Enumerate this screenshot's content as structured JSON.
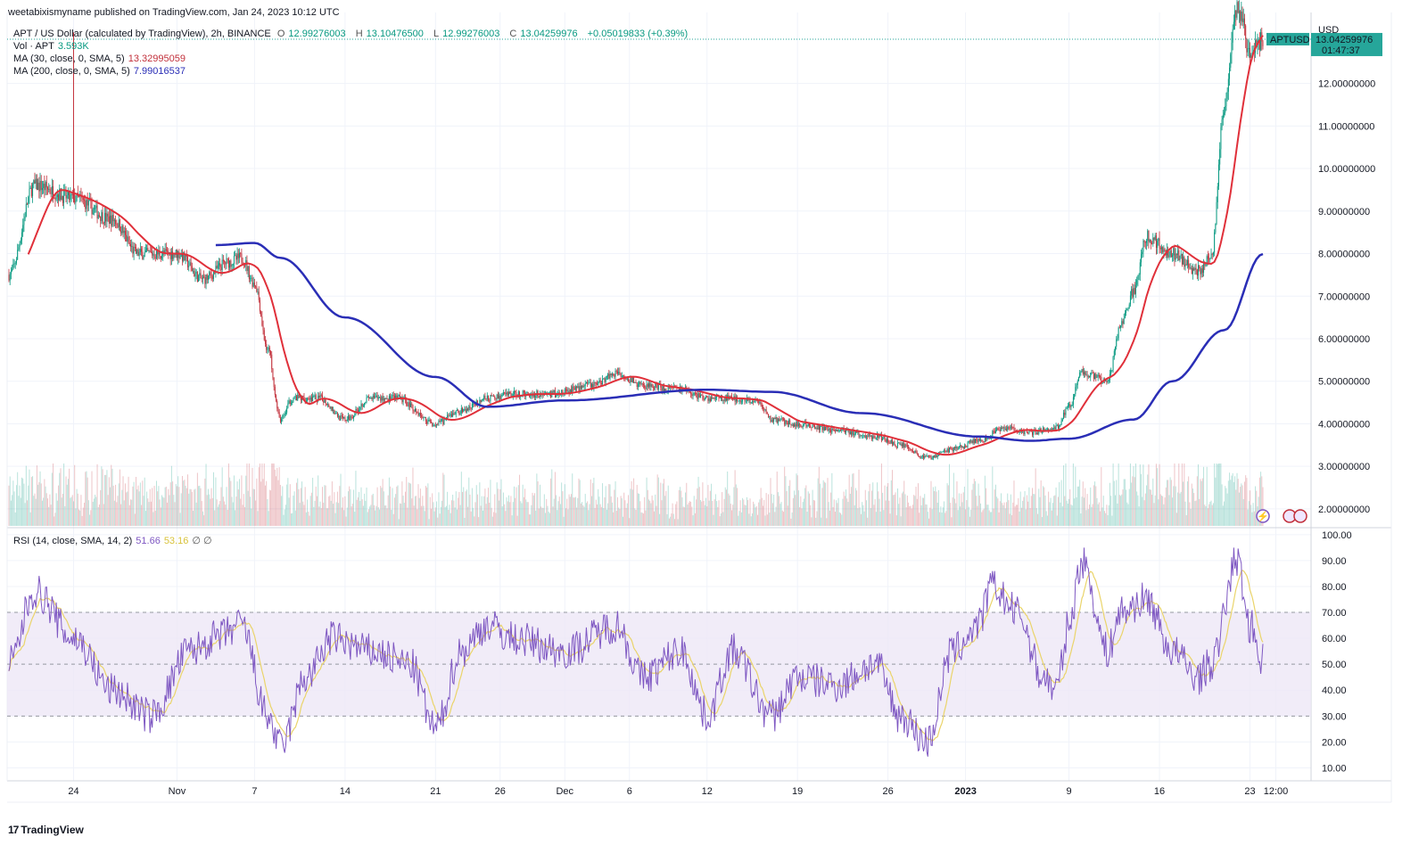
{
  "published": "weetabixismyname published on TradingView.com, Jan 24, 2023 10:12 UTC",
  "legend": {
    "symbol": "APT / US Dollar (calculated by TradingView), 2h, BINANCE",
    "o_label": "O",
    "o": "12.99276003",
    "h_label": "H",
    "h": "13.10476500",
    "l_label": "L",
    "l": "12.99276003",
    "c_label": "C",
    "c": "13.04259976",
    "change": "+0.05019833 (+0.39%)",
    "vol_label": "Vol · APT",
    "vol": "3.593K",
    "ma30_label": "MA (30, close, 0, SMA, 5)",
    "ma30": "13.32995059",
    "ma200_label": "MA (200, close, 0, SMA, 5)",
    "ma200": "7.99016537",
    "rsi_label": "RSI (14, close, SMA, 14, 2)",
    "rsi": "51.66",
    "rsi_ma": "53.16",
    "rsi_extra": "∅ ∅"
  },
  "price_tag": {
    "symbol": "APTUSD",
    "price": "13.04259976",
    "countdown": "01:47:37"
  },
  "currency": "USD",
  "footer_logo": "TradingView",
  "colors": {
    "up": "#089981",
    "down": "#c2303b",
    "ma30": "#e0303a",
    "ma200": "#2a2eb6",
    "rsi": "#7e57c2",
    "rsi_ma": "#ead46a",
    "band": "#ede7f6",
    "tag": "#26a69a"
  },
  "chart_data": [
    {
      "type": "candlestick",
      "title": "APT / US Dollar (calculated by TradingView), 2h, BINANCE",
      "ylabel": "USD",
      "ylim": [
        1.6,
        13.5
      ],
      "yticks": [
        "2.00000000",
        "3.00000000",
        "4.00000000",
        "5.00000000",
        "6.00000000",
        "7.00000000",
        "8.00000000",
        "9.00000000",
        "10.00000000",
        "11.00000000",
        "12.00000000"
      ],
      "x_tick_labels": [
        "24",
        "Nov",
        "7",
        "14",
        "21",
        "26",
        "Dec",
        "6",
        "12",
        "19",
        "26",
        "2023",
        "9",
        "16",
        "23",
        "12:00"
      ],
      "close_anchors": [
        [
          "2022-10-19",
          7.5
        ],
        [
          "2022-10-21",
          9.6
        ],
        [
          "2022-10-24",
          9.3
        ],
        [
          "2022-10-27",
          8.8
        ],
        [
          "2022-10-29",
          8.0
        ],
        [
          "2022-11-01",
          8.0
        ],
        [
          "2022-11-03",
          7.4
        ],
        [
          "2022-11-05",
          7.8
        ],
        [
          "2022-11-06",
          7.9
        ],
        [
          "2022-11-07",
          7.3
        ],
        [
          "2022-11-08",
          5.8
        ],
        [
          "2022-11-09",
          4.1
        ],
        [
          "2022-11-10",
          4.6
        ],
        [
          "2022-11-12",
          4.6
        ],
        [
          "2022-11-14",
          4.1
        ],
        [
          "2022-11-16",
          4.6
        ],
        [
          "2022-11-18",
          4.6
        ],
        [
          "2022-11-21",
          4.0
        ],
        [
          "2022-11-23",
          4.3
        ],
        [
          "2022-11-25",
          4.6
        ],
        [
          "2022-11-27",
          4.7
        ],
        [
          "2022-11-30",
          4.7
        ],
        [
          "2022-12-03",
          4.9
        ],
        [
          "2022-12-05",
          5.2
        ],
        [
          "2022-12-07",
          4.9
        ],
        [
          "2022-12-10",
          4.8
        ],
        [
          "2022-12-12",
          4.6
        ],
        [
          "2022-12-14",
          4.6
        ],
        [
          "2022-12-16",
          4.5
        ],
        [
          "2022-12-17",
          4.1
        ],
        [
          "2022-12-19",
          4.0
        ],
        [
          "2022-12-22",
          3.85
        ],
        [
          "2022-12-25",
          3.7
        ],
        [
          "2022-12-27",
          3.5
        ],
        [
          "2022-12-29",
          3.2
        ],
        [
          "2022-12-31",
          3.4
        ],
        [
          "2023-01-02",
          3.6
        ],
        [
          "2023-01-04",
          3.9
        ],
        [
          "2023-01-06",
          3.8
        ],
        [
          "2023-01-08",
          3.9
        ],
        [
          "2023-01-09",
          4.4
        ],
        [
          "2023-01-10",
          5.2
        ],
        [
          "2023-01-12",
          5.0
        ],
        [
          "2023-01-13",
          6.3
        ],
        [
          "2023-01-14",
          7.1
        ],
        [
          "2023-01-15",
          8.4
        ],
        [
          "2023-01-17",
          8.0
        ],
        [
          "2023-01-19",
          7.6
        ],
        [
          "2023-01-20",
          7.9
        ],
        [
          "2023-01-21",
          11.5
        ],
        [
          "2023-01-22",
          13.8
        ],
        [
          "2023-01-23",
          12.8
        ],
        [
          "2023-01-24",
          13.04
        ]
      ],
      "ma200_anchors": [
        [
          "2022-11-04",
          8.2
        ],
        [
          "2022-11-07",
          8.25
        ],
        [
          "2022-11-09",
          7.9
        ],
        [
          "2022-11-14",
          6.5
        ],
        [
          "2022-11-21",
          5.1
        ],
        [
          "2022-11-25",
          4.4
        ],
        [
          "2022-12-01",
          4.55
        ],
        [
          "2022-12-12",
          4.8
        ],
        [
          "2022-12-17",
          4.75
        ],
        [
          "2022-12-24",
          4.25
        ],
        [
          "2023-01-02",
          3.7
        ],
        [
          "2023-01-06",
          3.6
        ],
        [
          "2023-01-09",
          3.65
        ],
        [
          "2023-01-14",
          4.1
        ],
        [
          "2023-01-17",
          5.0
        ],
        [
          "2023-01-21",
          6.2
        ],
        [
          "2023-01-24",
          7.99
        ]
      ],
      "last_price": 13.04,
      "volume_note": "volume histogram shown at bottom of price pane"
    },
    {
      "type": "line",
      "title": "RSI (14, close, SMA, 14, 2)",
      "ylim": [
        5,
        102
      ],
      "yticks": [
        "10.00",
        "20.00",
        "30.00",
        "40.00",
        "50.00",
        "60.00",
        "70.00",
        "80.00",
        "90.00",
        "100.00"
      ],
      "band": [
        30,
        70
      ],
      "midline": 50,
      "rsi_anchors": [
        [
          "2022-10-19",
          50
        ],
        [
          "2022-10-21",
          78
        ],
        [
          "2022-10-24",
          60
        ],
        [
          "2022-10-27",
          40
        ],
        [
          "2022-10-30",
          30
        ],
        [
          "2022-11-02",
          55
        ],
        [
          "2022-11-04",
          60
        ],
        [
          "2022-11-06",
          65
        ],
        [
          "2022-11-08",
          30
        ],
        [
          "2022-11-09",
          18
        ],
        [
          "2022-11-11",
          45
        ],
        [
          "2022-11-13",
          60
        ],
        [
          "2022-11-16",
          55
        ],
        [
          "2022-11-19",
          50
        ],
        [
          "2022-11-21",
          25
        ],
        [
          "2022-11-23",
          55
        ],
        [
          "2022-11-25",
          65
        ],
        [
          "2022-11-27",
          60
        ],
        [
          "2022-12-01",
          55
        ],
        [
          "2022-12-05",
          65
        ],
        [
          "2022-12-07",
          45
        ],
        [
          "2022-12-10",
          55
        ],
        [
          "2022-12-12",
          30
        ],
        [
          "2022-12-14",
          55
        ],
        [
          "2022-12-17",
          30
        ],
        [
          "2022-12-19",
          45
        ],
        [
          "2022-12-22",
          42
        ],
        [
          "2022-12-25",
          50
        ],
        [
          "2022-12-27",
          30
        ],
        [
          "2022-12-29",
          20
        ],
        [
          "2022-12-31",
          55
        ],
        [
          "2023-01-02",
          65
        ],
        [
          "2023-01-03",
          80
        ],
        [
          "2023-01-05",
          70
        ],
        [
          "2023-01-07",
          45
        ],
        [
          "2023-01-08",
          40
        ],
        [
          "2023-01-09",
          65
        ],
        [
          "2023-01-10",
          90
        ],
        [
          "2023-01-12",
          55
        ],
        [
          "2023-01-13",
          70
        ],
        [
          "2023-01-15",
          75
        ],
        [
          "2023-01-17",
          55
        ],
        [
          "2023-01-19",
          45
        ],
        [
          "2023-01-20",
          50
        ],
        [
          "2023-01-22",
          90
        ],
        [
          "2023-01-23",
          65
        ],
        [
          "2023-01-24",
          51.66
        ]
      ],
      "last_value": 51.66,
      "ma_last_value": 53.16
    }
  ]
}
